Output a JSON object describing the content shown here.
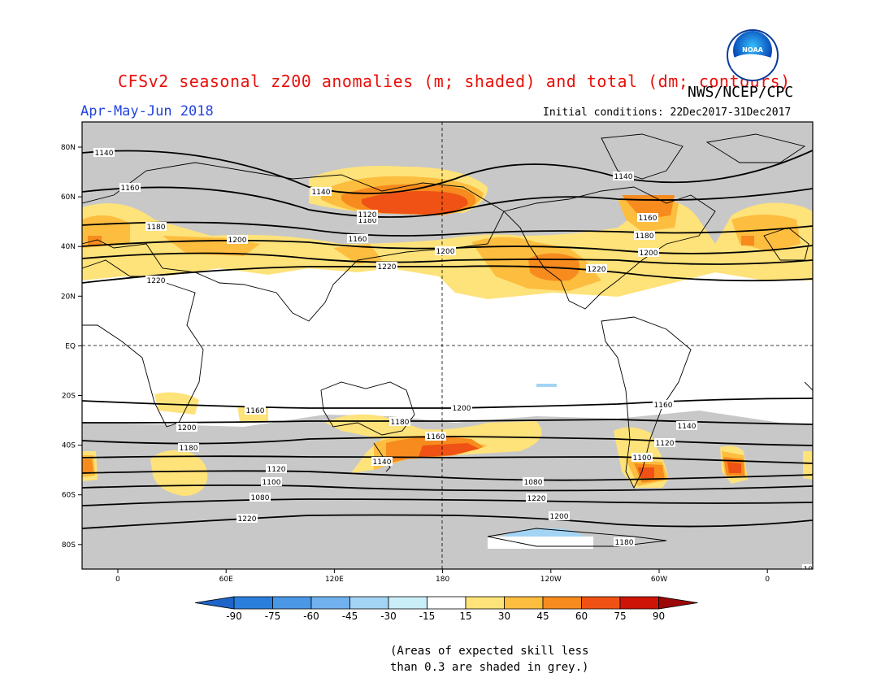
{
  "title": "CFSv2 seasonal z200 anomalies (m; shaded) and total (dm; contours)",
  "org": "NWS/NCEP/CPC",
  "logo_text": "NOAA",
  "period": "Apr-May-Jun 2018",
  "initial_conditions": "Initial conditions: 22Dec2017-31Dec2017",
  "lat_ticks": [
    "80N",
    "60N",
    "40N",
    "20N",
    "EQ",
    "20S",
    "40S",
    "60S",
    "80S"
  ],
  "lon_ticks": [
    "0",
    "60E",
    "120E",
    "180",
    "120W",
    "60W",
    "0"
  ],
  "contour_labels": [
    "1140",
    "1160",
    "1180",
    "1200",
    "1220",
    "1140",
    "1180",
    "1160",
    "1200",
    "1220",
    "1220",
    "1200",
    "1180",
    "1160",
    "1140",
    "1120",
    "1100",
    "1080",
    "1220",
    "1200",
    "1180",
    "1160",
    "1140",
    "1120",
    "1100",
    "1080",
    "1220",
    "1200",
    "1180",
    "1160",
    "1200",
    "1180",
    "1160",
    "1140",
    "1120",
    "1100",
    "1080"
  ],
  "colorbar": {
    "labels": [
      "-90",
      "-75",
      "-60",
      "-45",
      "-30",
      "-15",
      "15",
      "30",
      "45",
      "60",
      "75",
      "90"
    ],
    "colors": [
      "#1f64c8",
      "#2b7fdc",
      "#4a97e6",
      "#71b1ee",
      "#a3d4f4",
      "#c9eef8",
      "#ffffff",
      "#fee27a",
      "#fdbd3f",
      "#f78b1e",
      "#ef5214",
      "#cd1406",
      "#9c0707"
    ]
  },
  "skill_note": "(Areas of expected skill less\nthan 0.3 are shaded in grey.)",
  "colors": {
    "grey_mask": "#c8c8c8",
    "title": "#e8110c",
    "period": "#2244dd"
  }
}
